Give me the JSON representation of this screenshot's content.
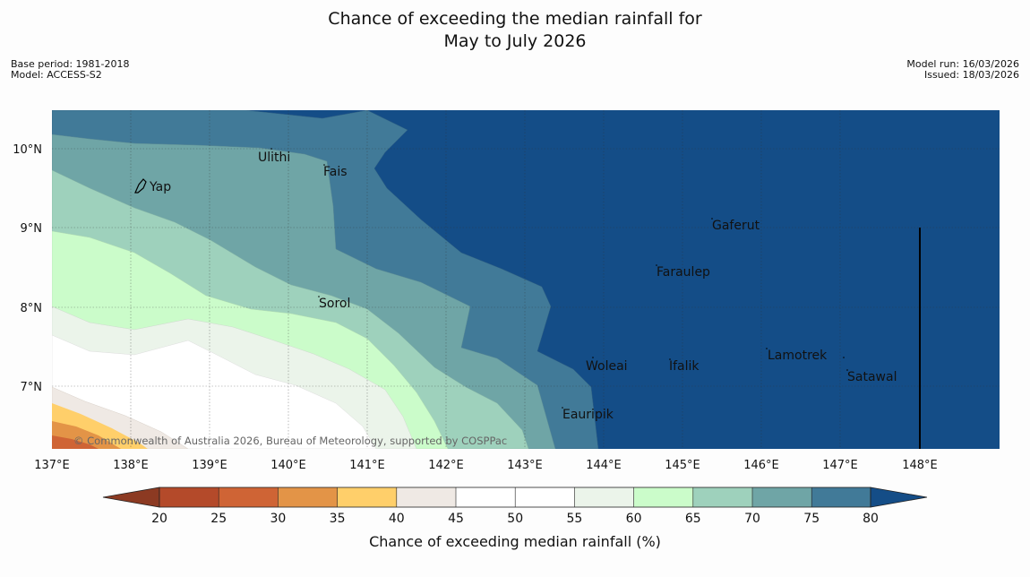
{
  "title": {
    "line1": "Chance of exceeding the median rainfall for",
    "line2": "May to July 2026"
  },
  "meta": {
    "base_period": "Base period: 1981-2018",
    "model": "Model: ACCESS-S2",
    "model_run": "Model run: 16/03/2026",
    "issued": "Issued: 18/03/2026"
  },
  "map": {
    "x_ticks": [
      "137°E",
      "138°E",
      "139°E",
      "140°E",
      "141°E",
      "142°E",
      "143°E",
      "144°E",
      "145°E",
      "146°E",
      "147°E",
      "148°E"
    ],
    "y_ticks": [
      "10°N",
      "9°N",
      "8°N",
      "7°N"
    ],
    "places": {
      "yap": "Yap",
      "ulithi": "Ulithi",
      "fais": "Fais",
      "gaferut": "Gaferut",
      "faraulep": "Faraulep",
      "sorol": "Sorol",
      "woleai": "Woleai",
      "ifalik": "Ifalik",
      "lamotrek": "Lamotrek",
      "satawal": "Satawal",
      "eauripik": "Eauripik"
    },
    "copyright": "© Commonwealth of Australia 2026, Bureau of Meteorology, supported by COSPPac"
  },
  "colorbar": {
    "label": "Chance of exceeding median rainfall (%)",
    "ticks": [
      "20",
      "25",
      "30",
      "35",
      "40",
      "45",
      "50",
      "55",
      "60",
      "65",
      "70",
      "75",
      "80"
    ],
    "colors": {
      "lt20": "#8c3a22",
      "c20_25": "#b44a2a",
      "c25_30": "#cf6435",
      "c30_35": "#e39447",
      "c35_40": "#ffcf6a",
      "c40_45": "#efe9e4",
      "c45_50": "#ffffff",
      "c50_55": "#ffffff",
      "c55_60": "#ebf4ea",
      "c60_65": "#cbfcca",
      "c65_70": "#9ed1bc",
      "c70_75": "#6fa5a6",
      "c75_80": "#417a98",
      "gt80": "#144d87"
    }
  }
}
